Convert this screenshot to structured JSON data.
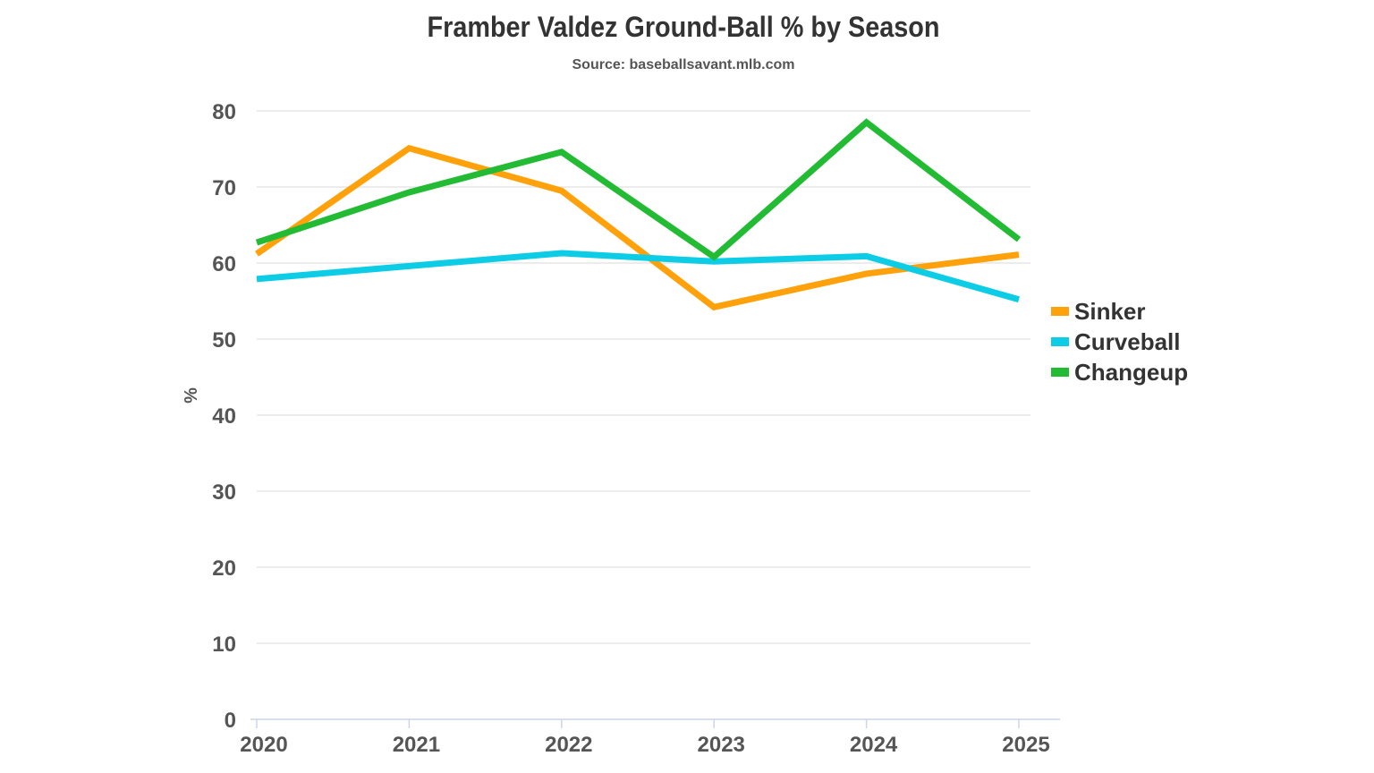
{
  "chart_data": {
    "type": "line",
    "title": "Framber Valdez Ground-Ball % by Season",
    "subtitle": "Source: baseballsavant.mlb.com",
    "xlabel": "",
    "ylabel": "%",
    "x": [
      "2020",
      "2021",
      "2022",
      "2023",
      "2024",
      "2025"
    ],
    "ylim": [
      0,
      80
    ],
    "yticks": [
      0,
      10,
      20,
      30,
      40,
      50,
      60,
      70,
      80
    ],
    "grid": true,
    "legend_position": "right",
    "series": [
      {
        "name": "Sinker",
        "color": "#FFA10A",
        "values": [
          61.2,
          75.1,
          69.5,
          54.2,
          58.6,
          61.1
        ]
      },
      {
        "name": "Curveball",
        "color": "#0DCDE6",
        "values": [
          57.9,
          59.6,
          61.3,
          60.2,
          60.9,
          55.2
        ]
      },
      {
        "name": "Changeup",
        "color": "#22BB33",
        "values": [
          62.7,
          69.3,
          74.6,
          60.8,
          78.5,
          63.1
        ]
      }
    ]
  }
}
